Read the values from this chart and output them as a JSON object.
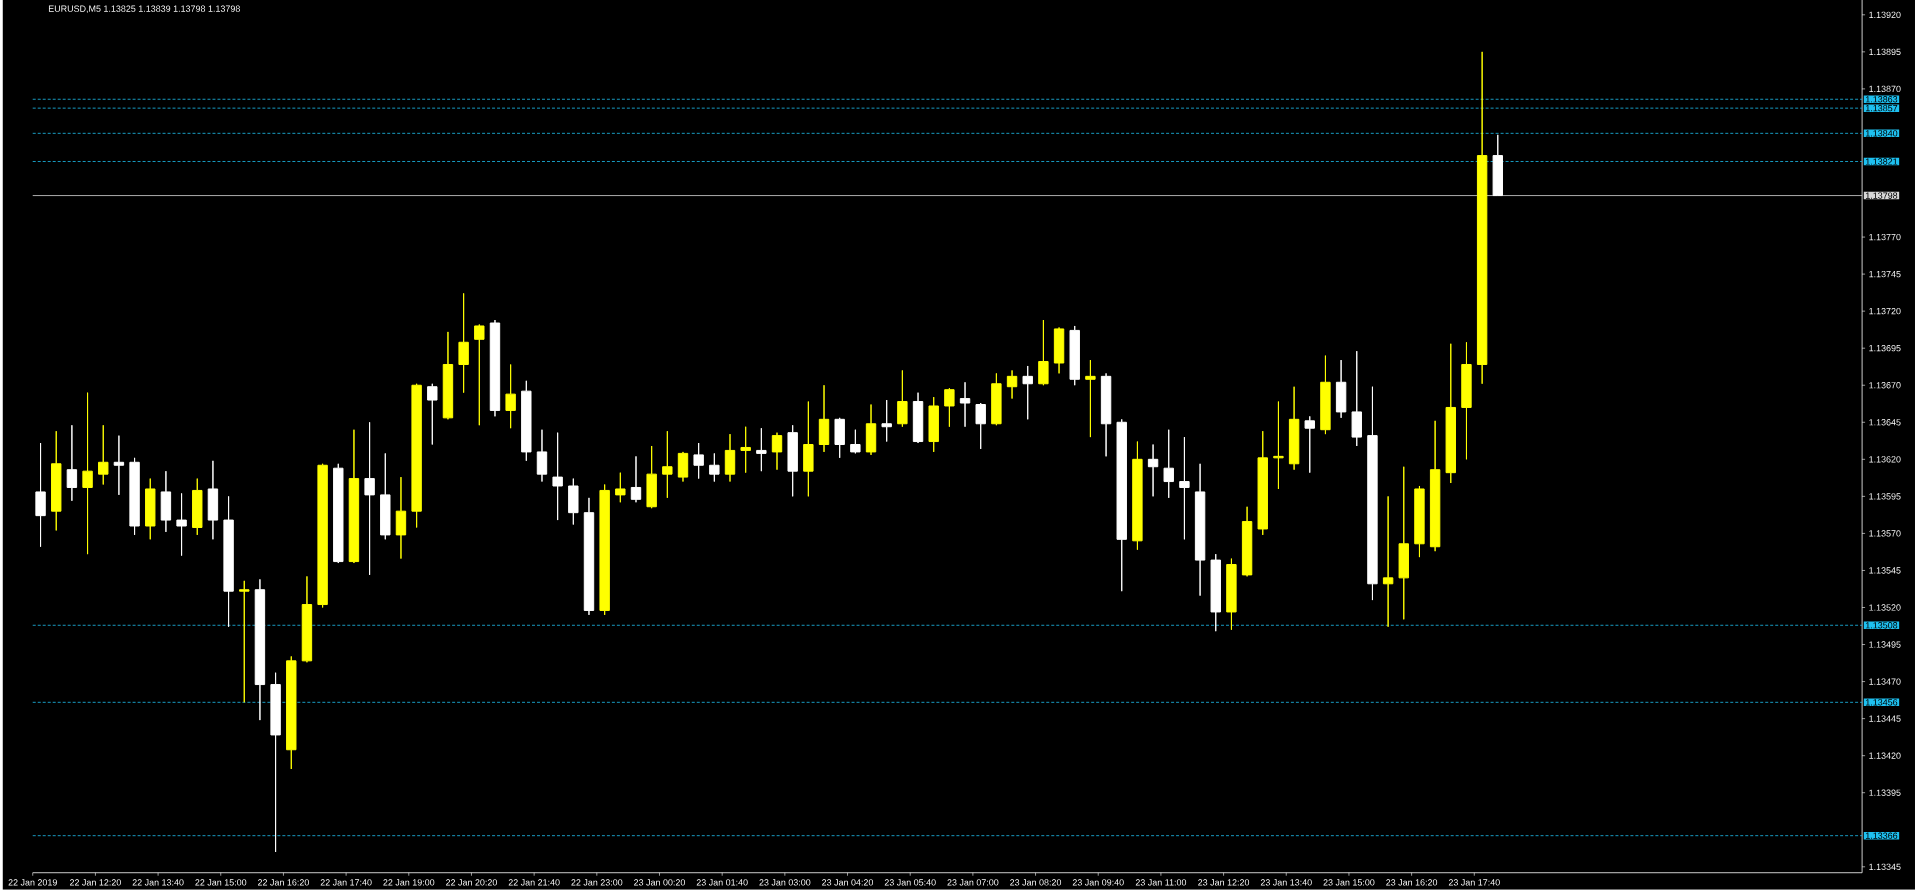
{
  "chart_data": {
    "type": "candlestick",
    "title": "EURUSD,M5  1.13825 1.13839 1.13798 1.13798",
    "x": [
      "2019-01-22T11:10",
      "2019-01-22T11:30",
      "2019-01-22T11:50",
      "2019-01-22T12:10",
      "2019-01-22T12:30",
      "2019-01-22T12:50",
      "2019-01-22T13:10",
      "2019-01-22T13:30",
      "2019-01-22T13:50",
      "2019-01-22T14:10",
      "2019-01-22T14:30",
      "2019-01-22T14:50",
      "2019-01-22T15:10",
      "2019-01-22T15:30",
      "2019-01-22T15:50",
      "2019-01-22T16:10",
      "2019-01-22T16:30",
      "2019-01-22T16:50",
      "2019-01-22T17:10",
      "2019-01-22T17:30",
      "2019-01-22T17:50",
      "2019-01-22T18:10",
      "2019-01-22T18:30",
      "2019-01-22T18:50",
      "2019-01-22T19:10",
      "2019-01-22T19:30",
      "2019-01-22T19:50",
      "2019-01-22T20:10",
      "2019-01-22T20:30",
      "2019-01-22T20:50",
      "2019-01-22T21:10",
      "2019-01-22T21:30",
      "2019-01-22T21:50",
      "2019-01-22T22:10",
      "2019-01-22T22:30",
      "2019-01-22T22:50",
      "2019-01-22T23:10",
      "2019-01-22T23:30",
      "2019-01-22T23:50",
      "2019-01-23T00:10",
      "2019-01-23T00:30",
      "2019-01-23T00:50",
      "2019-01-23T01:10",
      "2019-01-23T01:30",
      "2019-01-23T01:50",
      "2019-01-23T02:10",
      "2019-01-23T02:30",
      "2019-01-23T02:50",
      "2019-01-23T03:10",
      "2019-01-23T03:30",
      "2019-01-23T03:50",
      "2019-01-23T04:10",
      "2019-01-23T04:30",
      "2019-01-23T04:50",
      "2019-01-23T05:10",
      "2019-01-23T05:30",
      "2019-01-23T05:50",
      "2019-01-23T06:10",
      "2019-01-23T06:30",
      "2019-01-23T06:50",
      "2019-01-23T07:10",
      "2019-01-23T07:30",
      "2019-01-23T07:50",
      "2019-01-23T08:10",
      "2019-01-23T08:30",
      "2019-01-23T08:50",
      "2019-01-23T09:10",
      "2019-01-23T09:30",
      "2019-01-23T09:50",
      "2019-01-23T10:10",
      "2019-01-23T10:30",
      "2019-01-23T10:50",
      "2019-01-23T11:10",
      "2019-01-23T11:30",
      "2019-01-23T11:50",
      "2019-01-23T12:10",
      "2019-01-23T12:30",
      "2019-01-23T12:50",
      "2019-01-23T13:10",
      "2019-01-23T13:30",
      "2019-01-23T13:50",
      "2019-01-23T14:10",
      "2019-01-23T14:30",
      "2019-01-23T14:50",
      "2019-01-23T15:10",
      "2019-01-23T15:30",
      "2019-01-23T15:50",
      "2019-01-23T16:10",
      "2019-01-23T16:30",
      "2019-01-23T16:50",
      "2019-01-23T17:10",
      "2019-01-23T17:30",
      "2019-01-23T17:50",
      "2019-01-23T18:10"
    ],
    "ohlc": [
      [
        1.13598,
        1.13631,
        1.13561,
        1.13582
      ],
      [
        1.13585,
        1.13639,
        1.13572,
        1.13617
      ],
      [
        1.13613,
        1.13643,
        1.13592,
        1.13601
      ],
      [
        1.13601,
        1.13665,
        1.13556,
        1.13612
      ],
      [
        1.1361,
        1.13643,
        1.13603,
        1.13618
      ],
      [
        1.13618,
        1.13636,
        1.13596,
        1.13616
      ],
      [
        1.13618,
        1.13621,
        1.13569,
        1.13575
      ],
      [
        1.13575,
        1.13607,
        1.13566,
        1.136
      ],
      [
        1.13598,
        1.13612,
        1.13571,
        1.13579
      ],
      [
        1.13579,
        1.13597,
        1.13555,
        1.13575
      ],
      [
        1.13574,
        1.13607,
        1.13569,
        1.13599
      ],
      [
        1.136,
        1.13619,
        1.13566,
        1.13579
      ],
      [
        1.13579,
        1.13595,
        1.13507,
        1.13531
      ],
      [
        1.13531,
        1.13538,
        1.13456,
        1.13532
      ],
      [
        1.13532,
        1.13539,
        1.13444,
        1.13468
      ],
      [
        1.13468,
        1.13476,
        1.13355,
        1.13434
      ],
      [
        1.13424,
        1.13487,
        1.13411,
        1.13484
      ],
      [
        1.13484,
        1.13541,
        1.13483,
        1.13522
      ],
      [
        1.13522,
        1.13617,
        1.1352,
        1.13616
      ],
      [
        1.13614,
        1.13617,
        1.1355,
        1.13551
      ],
      [
        1.13551,
        1.1364,
        1.1355,
        1.13607
      ],
      [
        1.13607,
        1.13645,
        1.13542,
        1.13596
      ],
      [
        1.13596,
        1.13624,
        1.13566,
        1.13569
      ],
      [
        1.13569,
        1.13608,
        1.13553,
        1.13585
      ],
      [
        1.13585,
        1.13671,
        1.13574,
        1.1367
      ],
      [
        1.13669,
        1.13671,
        1.1363,
        1.1366
      ],
      [
        1.13648,
        1.13706,
        1.13647,
        1.13684
      ],
      [
        1.13684,
        1.13732,
        1.13665,
        1.13699
      ],
      [
        1.13701,
        1.13711,
        1.13643,
        1.1371
      ],
      [
        1.13712,
        1.13714,
        1.13649,
        1.13653
      ],
      [
        1.13653,
        1.13684,
        1.13641,
        1.13664
      ],
      [
        1.13666,
        1.13673,
        1.13619,
        1.13625
      ],
      [
        1.13625,
        1.1364,
        1.13605,
        1.1361
      ],
      [
        1.13608,
        1.13638,
        1.13579,
        1.13602
      ],
      [
        1.13602,
        1.13607,
        1.13576,
        1.13584
      ],
      [
        1.13584,
        1.13594,
        1.13515,
        1.13518
      ],
      [
        1.13518,
        1.13603,
        1.13515,
        1.13599
      ],
      [
        1.13596,
        1.13611,
        1.13591,
        1.136
      ],
      [
        1.13601,
        1.13622,
        1.13591,
        1.13593
      ],
      [
        1.13588,
        1.13629,
        1.13587,
        1.1361
      ],
      [
        1.1361,
        1.13639,
        1.13594,
        1.13615
      ],
      [
        1.13608,
        1.13625,
        1.13605,
        1.13624
      ],
      [
        1.13623,
        1.13631,
        1.13607,
        1.13616
      ],
      [
        1.13616,
        1.13624,
        1.13605,
        1.1361
      ],
      [
        1.1361,
        1.13637,
        1.13605,
        1.13626
      ],
      [
        1.13626,
        1.13642,
        1.13611,
        1.13628
      ],
      [
        1.13626,
        1.13641,
        1.13612,
        1.13624
      ],
      [
        1.13625,
        1.13638,
        1.13613,
        1.13636
      ],
      [
        1.13638,
        1.13643,
        1.13595,
        1.13612
      ],
      [
        1.13612,
        1.13659,
        1.13595,
        1.1363
      ],
      [
        1.1363,
        1.1367,
        1.13625,
        1.13647
      ],
      [
        1.13647,
        1.13648,
        1.13621,
        1.1363
      ],
      [
        1.1363,
        1.1364,
        1.13624,
        1.13625
      ],
      [
        1.13625,
        1.13657,
        1.13623,
        1.13644
      ],
      [
        1.13644,
        1.1366,
        1.13632,
        1.13642
      ],
      [
        1.13644,
        1.1368,
        1.13642,
        1.13659
      ],
      [
        1.13659,
        1.13665,
        1.13631,
        1.13632
      ],
      [
        1.13632,
        1.13662,
        1.13625,
        1.13656
      ],
      [
        1.13656,
        1.13668,
        1.13642,
        1.13667
      ],
      [
        1.13661,
        1.13672,
        1.13642,
        1.13658
      ],
      [
        1.13657,
        1.13658,
        1.13627,
        1.13644
      ],
      [
        1.13644,
        1.13678,
        1.13643,
        1.13671
      ],
      [
        1.13669,
        1.1368,
        1.13661,
        1.13676
      ],
      [
        1.13676,
        1.13683,
        1.13647,
        1.13671
      ],
      [
        1.13671,
        1.13714,
        1.1367,
        1.13686
      ],
      [
        1.13685,
        1.13709,
        1.13678,
        1.13708
      ],
      [
        1.13707,
        1.1371,
        1.1367,
        1.13674
      ],
      [
        1.13674,
        1.13687,
        1.13635,
        1.13676
      ],
      [
        1.13676,
        1.13678,
        1.13622,
        1.13644
      ],
      [
        1.13645,
        1.13647,
        1.13531,
        1.13566
      ],
      [
        1.13565,
        1.13632,
        1.13559,
        1.1362
      ],
      [
        1.1362,
        1.1363,
        1.13595,
        1.13615
      ],
      [
        1.13614,
        1.1364,
        1.13594,
        1.13605
      ],
      [
        1.13605,
        1.13635,
        1.13566,
        1.13601
      ],
      [
        1.13598,
        1.13617,
        1.13528,
        1.13552
      ],
      [
        1.13552,
        1.13556,
        1.13504,
        1.13517
      ],
      [
        1.13517,
        1.13553,
        1.13505,
        1.13549
      ],
      [
        1.13542,
        1.13588,
        1.13541,
        1.13578
      ],
      [
        1.13573,
        1.13639,
        1.13569,
        1.13621
      ],
      [
        1.13621,
        1.13659,
        1.136,
        1.13622
      ],
      [
        1.13617,
        1.13669,
        1.13613,
        1.13647
      ],
      [
        1.13646,
        1.13649,
        1.13611,
        1.13641
      ],
      [
        1.1364,
        1.1369,
        1.13637,
        1.13672
      ],
      [
        1.13672,
        1.13687,
        1.13648,
        1.13652
      ],
      [
        1.13652,
        1.13693,
        1.13629,
        1.13635
      ],
      [
        1.13636,
        1.13669,
        1.13525,
        1.13536
      ],
      [
        1.13536,
        1.13595,
        1.13507,
        1.1354
      ],
      [
        1.1354,
        1.13615,
        1.13512,
        1.13563
      ],
      [
        1.13563,
        1.13602,
        1.13554,
        1.136
      ],
      [
        1.13561,
        1.13646,
        1.13558,
        1.13613
      ],
      [
        1.13611,
        1.13698,
        1.13604,
        1.13655
      ],
      [
        1.13655,
        1.13699,
        1.1362,
        1.13684
      ],
      [
        1.13684,
        1.13895,
        1.13671,
        1.13825
      ],
      [
        1.13825,
        1.13839,
        1.13798,
        1.13798
      ]
    ],
    "colors": [
      "#ffffff",
      "#ffff00",
      "#ffffff",
      "#ffff00",
      "#ffff00",
      "#ffffff",
      "#ffffff",
      "#ffff00",
      "#ffffff",
      "#ffffff",
      "#ffff00",
      "#ffffff",
      "#ffffff",
      "#ffff00",
      "#ffffff",
      "#ffffff",
      "#ffff00",
      "#ffff00",
      "#ffff00",
      "#ffffff",
      "#ffff00",
      "#ffffff",
      "#ffffff",
      "#ffff00",
      "#ffff00",
      "#ffffff",
      "#ffff00",
      "#ffff00",
      "#ffff00",
      "#ffffff",
      "#ffff00",
      "#ffffff",
      "#ffffff",
      "#ffffff",
      "#ffffff",
      "#ffffff",
      "#ffff00",
      "#ffff00",
      "#ffffff",
      "#ffff00",
      "#ffff00",
      "#ffff00",
      "#ffffff",
      "#ffffff",
      "#ffff00",
      "#ffff00",
      "#ffffff",
      "#ffff00",
      "#ffffff",
      "#ffff00",
      "#ffff00",
      "#ffffff",
      "#ffffff",
      "#ffff00",
      "#ffffff",
      "#ffff00",
      "#ffffff",
      "#ffff00",
      "#ffff00",
      "#ffffff",
      "#ffffff",
      "#ffff00",
      "#ffff00",
      "#ffffff",
      "#ffff00",
      "#ffff00",
      "#ffffff",
      "#ffff00",
      "#ffffff",
      "#ffffff",
      "#ffff00",
      "#ffffff",
      "#ffffff",
      "#ffffff",
      "#ffffff",
      "#ffffff",
      "#ffff00",
      "#ffff00",
      "#ffff00",
      "#ffff00",
      "#ffff00",
      "#ffffff",
      "#ffff00",
      "#ffffff",
      "#ffffff",
      "#ffffff",
      "#ffff00",
      "#ffff00",
      "#ffff00",
      "#ffff00",
      "#ffff00",
      "#ffff00",
      "#ffff00",
      "#ffffff"
    ],
    "xlim": [
      "2019-01-22T11:00",
      "2019-01-24T01:55"
    ],
    "ylim": [
      1.13341,
      1.1393
    ],
    "xticks": [
      {
        "value": "2019-01-22T11:00",
        "label": "22 Jan 2019"
      },
      {
        "value": "2019-01-22T12:20",
        "label": "22 Jan 12:20"
      },
      {
        "value": "2019-01-22T13:40",
        "label": "22 Jan 13:40"
      },
      {
        "value": "2019-01-22T15:00",
        "label": "22 Jan 15:00"
      },
      {
        "value": "2019-01-22T16:20",
        "label": "22 Jan 16:20"
      },
      {
        "value": "2019-01-22T17:40",
        "label": "22 Jan 17:40"
      },
      {
        "value": "2019-01-22T19:00",
        "label": "22 Jan 19:00"
      },
      {
        "value": "2019-01-22T20:20",
        "label": "22 Jan 20:20"
      },
      {
        "value": "2019-01-22T21:40",
        "label": "22 Jan 21:40"
      },
      {
        "value": "2019-01-22T23:00",
        "label": "22 Jan 23:00"
      },
      {
        "value": "2019-01-23T00:20",
        "label": "23 Jan 00:20"
      },
      {
        "value": "2019-01-23T01:40",
        "label": "23 Jan 01:40"
      },
      {
        "value": "2019-01-23T03:00",
        "label": "23 Jan 03:00"
      },
      {
        "value": "2019-01-23T04:20",
        "label": "23 Jan 04:20"
      },
      {
        "value": "2019-01-23T05:40",
        "label": "23 Jan 05:40"
      },
      {
        "value": "2019-01-23T07:00",
        "label": "23 Jan 07:00"
      },
      {
        "value": "2019-01-23T08:20",
        "label": "23 Jan 08:20"
      },
      {
        "value": "2019-01-23T09:40",
        "label": "23 Jan 09:40"
      },
      {
        "value": "2019-01-23T11:00",
        "label": "23 Jan 11:00"
      },
      {
        "value": "2019-01-23T12:20",
        "label": "23 Jan 12:20"
      },
      {
        "value": "2019-01-23T13:40",
        "label": "23 Jan 13:40"
      },
      {
        "value": "2019-01-23T15:00",
        "label": "23 Jan 15:00"
      },
      {
        "value": "2019-01-23T16:20",
        "label": "23 Jan 16:20"
      },
      {
        "value": "2019-01-23T17:40",
        "label": "23 Jan 17:40"
      }
    ],
    "yticks": [
      {
        "value": 1.13345,
        "label": "1.13345"
      },
      {
        "value": 1.13395,
        "label": "1.13395"
      },
      {
        "value": 1.1342,
        "label": "1.13420"
      },
      {
        "value": 1.13445,
        "label": "1.13445"
      },
      {
        "value": 1.1347,
        "label": "1.13470"
      },
      {
        "value": 1.13495,
        "label": "1.13495"
      },
      {
        "value": 1.1352,
        "label": "1.13520"
      },
      {
        "value": 1.13545,
        "label": "1.13545"
      },
      {
        "value": 1.1357,
        "label": "1.13570"
      },
      {
        "value": 1.13595,
        "label": "1.13595"
      },
      {
        "value": 1.1362,
        "label": "1.13620"
      },
      {
        "value": 1.13645,
        "label": "1.13645"
      },
      {
        "value": 1.1367,
        "label": "1.13670"
      },
      {
        "value": 1.13695,
        "label": "1.13695"
      },
      {
        "value": 1.1372,
        "label": "1.13720"
      },
      {
        "value": 1.13745,
        "label": "1.13745"
      },
      {
        "value": 1.1377,
        "label": "1.13770"
      },
      {
        "value": 1.1387,
        "label": "1.13870"
      },
      {
        "value": 1.13895,
        "label": "1.13895"
      },
      {
        "value": 1.1392,
        "label": "1.13920"
      }
    ],
    "ref_lines": [
      {
        "axis": "y",
        "value": 1.13863,
        "label": "1.13863",
        "color": "#1ec0f0",
        "line_style": "dashed"
      },
      {
        "axis": "y",
        "value": 1.13857,
        "label": "1.13857",
        "color": "#1ec0f0",
        "line_style": "dashed"
      },
      {
        "axis": "y",
        "value": 1.1384,
        "label": "1.13840",
        "color": "#1ec0f0",
        "line_style": "dashed"
      },
      {
        "axis": "y",
        "value": 1.13821,
        "label": "1.13821",
        "color": "#1ec0f0",
        "line_style": "dashed"
      },
      {
        "axis": "y",
        "value": 1.13798,
        "label": "1.13798",
        "color": "#d8d8d8",
        "line_style": "solid"
      },
      {
        "axis": "y",
        "value": 1.13508,
        "label": "1.13508",
        "color": "#1ec0f0",
        "line_style": "dashed"
      },
      {
        "axis": "y",
        "value": 1.13456,
        "label": "1.13456",
        "color": "#1ec0f0",
        "line_style": "dashed"
      },
      {
        "axis": "y",
        "value": 1.13366,
        "label": "1.13366",
        "color": "#1ec0f0",
        "line_style": "dashed"
      }
    ]
  }
}
